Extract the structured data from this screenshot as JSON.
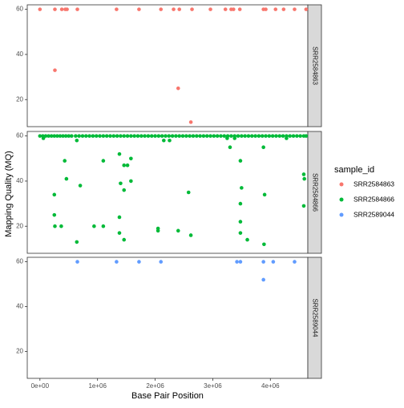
{
  "chart_data": {
    "type": "scatter",
    "facet_by": "sample_id",
    "xlabel": "Base Pair Position",
    "ylabel": "Mapping Quality (MQ)",
    "x_ticks": [
      0,
      1000000,
      2000000,
      3000000,
      4000000
    ],
    "x_tick_labels": [
      "0e+00",
      "1e+06",
      "2e+06",
      "3e+06",
      "4e+06"
    ],
    "y_ticks": [
      20,
      40,
      60
    ],
    "y_tick_labels": [
      "20",
      "40",
      "60"
    ],
    "xlim": [
      -220000,
      4650000
    ],
    "ylim": [
      8,
      62
    ],
    "grid": false,
    "legend": {
      "title": "sample_id",
      "position": "right",
      "entries": [
        "SRR2584863",
        "SRR2584866",
        "SRR2589044"
      ]
    },
    "series": [
      {
        "name": "SRR2584863",
        "color": "#F8766D",
        "points": [
          [
            0,
            60
          ],
          [
            260000,
            60
          ],
          [
            380000,
            60
          ],
          [
            440000,
            60
          ],
          [
            470000,
            60
          ],
          [
            650000,
            60
          ],
          [
            1330000,
            60
          ],
          [
            1720000,
            60
          ],
          [
            2100000,
            60
          ],
          [
            2320000,
            60
          ],
          [
            2420000,
            60
          ],
          [
            2640000,
            60
          ],
          [
            2960000,
            60
          ],
          [
            3220000,
            60
          ],
          [
            3320000,
            60
          ],
          [
            3360000,
            60
          ],
          [
            3470000,
            60
          ],
          [
            3880000,
            60
          ],
          [
            3920000,
            60
          ],
          [
            4090000,
            60
          ],
          [
            4230000,
            60
          ],
          [
            4420000,
            60
          ],
          [
            4620000,
            60
          ],
          [
            260000,
            33
          ],
          [
            2400000,
            25
          ],
          [
            2620000,
            10
          ]
        ]
      },
      {
        "name": "SRR2584866",
        "color": "#00BA38",
        "points": [
          [
            0,
            60
          ],
          [
            50000,
            60
          ],
          [
            100000,
            60
          ],
          [
            150000,
            60
          ],
          [
            200000,
            60
          ],
          [
            250000,
            60
          ],
          [
            300000,
            60
          ],
          [
            350000,
            60
          ],
          [
            400000,
            60
          ],
          [
            450000,
            60
          ],
          [
            500000,
            60
          ],
          [
            550000,
            60
          ],
          [
            620000,
            60
          ],
          [
            680000,
            60
          ],
          [
            740000,
            60
          ],
          [
            800000,
            60
          ],
          [
            860000,
            60
          ],
          [
            920000,
            60
          ],
          [
            980000,
            60
          ],
          [
            1040000,
            60
          ],
          [
            1100000,
            60
          ],
          [
            1160000,
            60
          ],
          [
            1220000,
            60
          ],
          [
            1280000,
            60
          ],
          [
            1340000,
            60
          ],
          [
            1400000,
            60
          ],
          [
            1460000,
            60
          ],
          [
            1520000,
            60
          ],
          [
            1580000,
            60
          ],
          [
            1640000,
            60
          ],
          [
            1700000,
            60
          ],
          [
            1760000,
            60
          ],
          [
            1820000,
            60
          ],
          [
            1880000,
            60
          ],
          [
            1940000,
            60
          ],
          [
            2000000,
            60
          ],
          [
            2060000,
            60
          ],
          [
            2120000,
            60
          ],
          [
            2180000,
            60
          ],
          [
            2240000,
            60
          ],
          [
            2300000,
            60
          ],
          [
            2360000,
            60
          ],
          [
            2420000,
            60
          ],
          [
            2480000,
            60
          ],
          [
            2540000,
            60
          ],
          [
            2600000,
            60
          ],
          [
            2660000,
            60
          ],
          [
            2720000,
            60
          ],
          [
            2780000,
            60
          ],
          [
            2840000,
            60
          ],
          [
            2900000,
            60
          ],
          [
            2960000,
            60
          ],
          [
            3020000,
            60
          ],
          [
            3080000,
            60
          ],
          [
            3140000,
            60
          ],
          [
            3200000,
            60
          ],
          [
            3260000,
            60
          ],
          [
            3320000,
            60
          ],
          [
            3380000,
            60
          ],
          [
            3440000,
            60
          ],
          [
            3500000,
            60
          ],
          [
            3560000,
            60
          ],
          [
            3620000,
            60
          ],
          [
            3680000,
            60
          ],
          [
            3740000,
            60
          ],
          [
            3800000,
            60
          ],
          [
            3860000,
            60
          ],
          [
            3920000,
            60
          ],
          [
            3980000,
            60
          ],
          [
            4040000,
            60
          ],
          [
            4100000,
            60
          ],
          [
            4160000,
            60
          ],
          [
            4220000,
            60
          ],
          [
            4280000,
            60
          ],
          [
            4340000,
            60
          ],
          [
            4400000,
            60
          ],
          [
            4460000,
            60
          ],
          [
            4520000,
            60
          ],
          [
            4580000,
            60
          ],
          [
            4620000,
            60
          ],
          [
            60000,
            59
          ],
          [
            640000,
            58
          ],
          [
            2150000,
            58
          ],
          [
            2250000,
            58
          ],
          [
            3250000,
            59
          ],
          [
            3380000,
            59
          ],
          [
            4280000,
            59
          ],
          [
            250000,
            34
          ],
          [
            250000,
            25
          ],
          [
            260000,
            20
          ],
          [
            370000,
            20
          ],
          [
            430000,
            49
          ],
          [
            460000,
            41
          ],
          [
            640000,
            13
          ],
          [
            700000,
            38
          ],
          [
            940000,
            20
          ],
          [
            1100000,
            20
          ],
          [
            1100000,
            49
          ],
          [
            1380000,
            52
          ],
          [
            1400000,
            39
          ],
          [
            1380000,
            24
          ],
          [
            1380000,
            17
          ],
          [
            1460000,
            47
          ],
          [
            1520000,
            47
          ],
          [
            1460000,
            36
          ],
          [
            1460000,
            14
          ],
          [
            1580000,
            50
          ],
          [
            1580000,
            40
          ],
          [
            2050000,
            19
          ],
          [
            2050000,
            18
          ],
          [
            2400000,
            18
          ],
          [
            2580000,
            35
          ],
          [
            2620000,
            16
          ],
          [
            3300000,
            55
          ],
          [
            3480000,
            49
          ],
          [
            3500000,
            37
          ],
          [
            3480000,
            30
          ],
          [
            3480000,
            22
          ],
          [
            3480000,
            17
          ],
          [
            3600000,
            14
          ],
          [
            3880000,
            55
          ],
          [
            3900000,
            34
          ],
          [
            3890000,
            12
          ],
          [
            4580000,
            43
          ],
          [
            4590000,
            41
          ],
          [
            4580000,
            29
          ]
        ]
      },
      {
        "name": "SRR2589044",
        "color": "#619CFF",
        "points": [
          [
            650000,
            60
          ],
          [
            1330000,
            60
          ],
          [
            1720000,
            60
          ],
          [
            2100000,
            60
          ],
          [
            3420000,
            60
          ],
          [
            3480000,
            60
          ],
          [
            3880000,
            60
          ],
          [
            4050000,
            60
          ],
          [
            4420000,
            60
          ],
          [
            3880000,
            52
          ]
        ]
      }
    ]
  },
  "panels": [
    {
      "strip_label": "SRR2584863"
    },
    {
      "strip_label": "SRR2584866"
    },
    {
      "strip_label": "SRR2589044"
    }
  ]
}
